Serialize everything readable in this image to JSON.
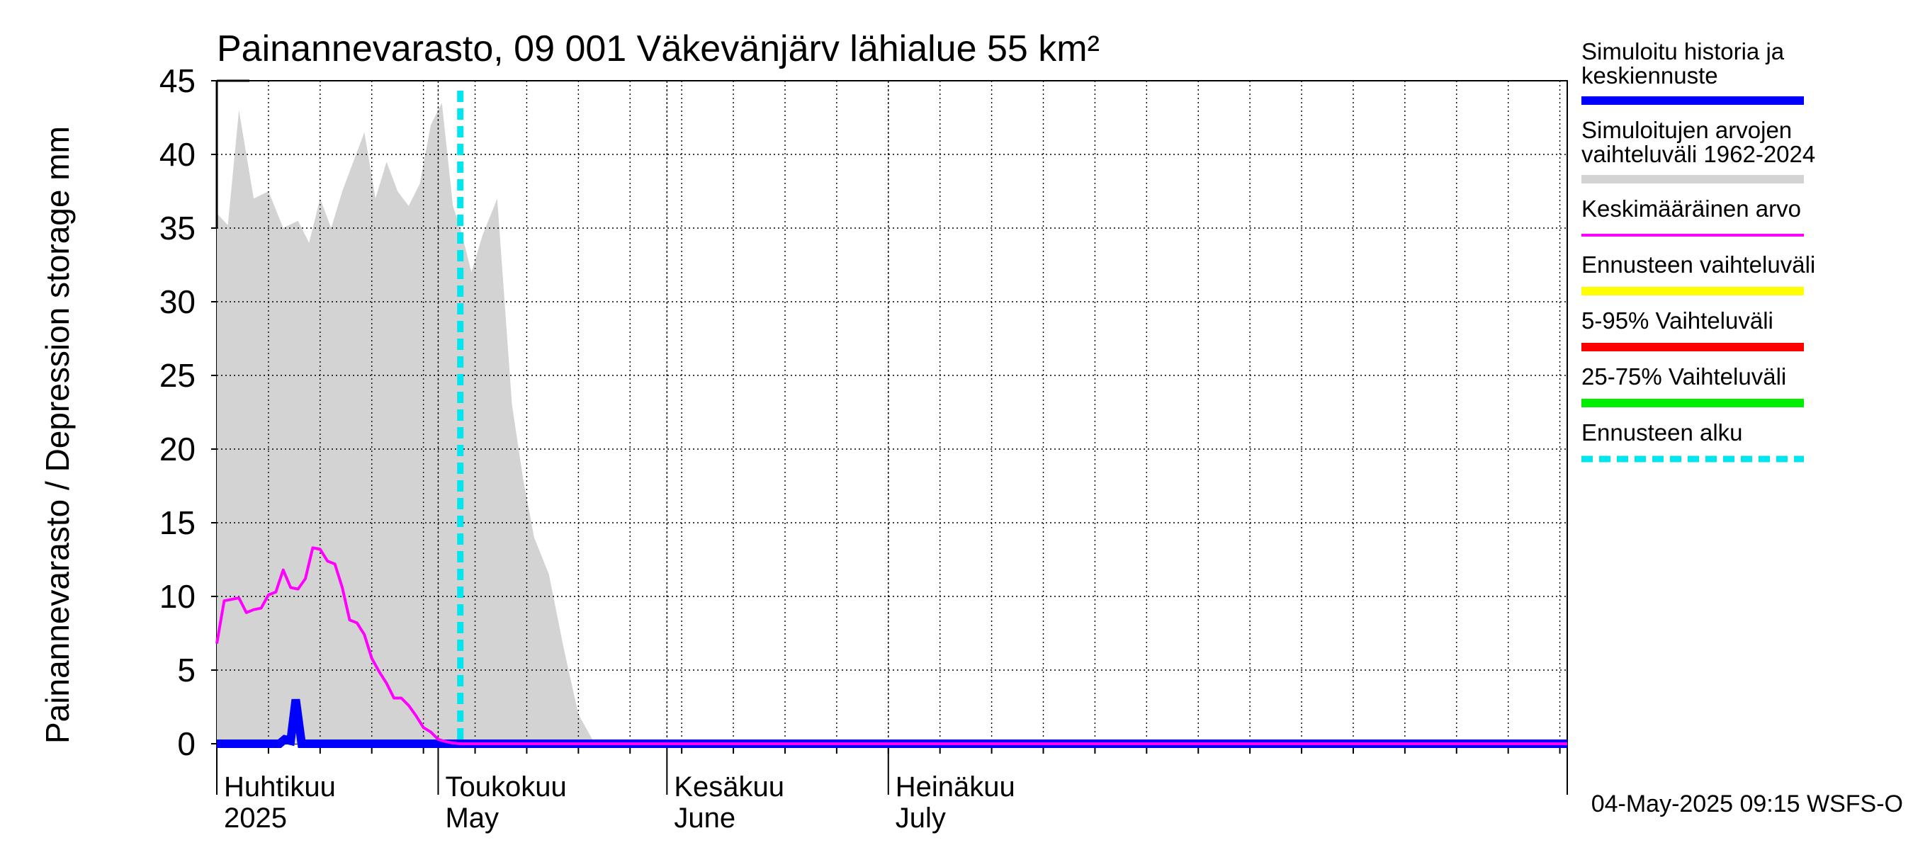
{
  "chart_data": {
    "type": "area",
    "title": "Painannevarasto, 09 001 Väkevänjärv lähialue 55 km²",
    "ylabel": "Painannevarasto / Depression storage    mm",
    "ylim": [
      0,
      45
    ],
    "yticks": [
      0,
      5,
      10,
      15,
      20,
      25,
      30,
      35,
      40,
      45
    ],
    "x_start_day": 0,
    "x_end_day": 183,
    "month_labels": [
      {
        "day": 0,
        "line1": "Huhtikuu",
        "line2": "2025"
      },
      {
        "day": 30,
        "line1": "Toukokuu",
        "line2": "May"
      },
      {
        "day": 61,
        "line1": "Kesäkuu",
        "line2": "June"
      },
      {
        "day": 91,
        "line1": "Heinäkuu",
        "line2": "July"
      }
    ],
    "forecast_start_day": 33,
    "series": [
      {
        "name": "Simuloitujen arvojen vaihteluväli 1962-2024",
        "kind": "band",
        "color": "#d3d3d3",
        "x": [
          0,
          1.5,
          3,
          5,
          7,
          9,
          11,
          12.5,
          14,
          15.5,
          17,
          18.5,
          20,
          21.5,
          23,
          24.5,
          26,
          27.5,
          29,
          30.5,
          32,
          33,
          34.5,
          36,
          38,
          39,
          40,
          41.5,
          43,
          45,
          47,
          49,
          51,
          53,
          55,
          55.4
        ],
        "upper": [
          36,
          35.2,
          43,
          37,
          37.5,
          35,
          35.5,
          34,
          37,
          35,
          37.5,
          39.5,
          41.5,
          37,
          39.5,
          37.5,
          36.5,
          38,
          42,
          43.5,
          36.5,
          35,
          32,
          34.5,
          37,
          30,
          23,
          18,
          14,
          11.5,
          6.5,
          2,
          0.2,
          0,
          0,
          0
        ],
        "lower": [
          0
        ]
      },
      {
        "name": "Keskimääräinen arvo",
        "kind": "line",
        "color": "#ff00ff",
        "x": [
          0,
          1,
          2,
          3,
          4,
          5,
          6,
          7,
          8,
          9,
          10,
          11,
          12,
          13,
          14,
          15,
          16,
          17,
          18,
          19,
          20,
          21,
          22,
          23,
          24,
          25,
          26,
          27,
          28,
          29,
          30,
          31,
          32,
          33,
          34,
          35,
          36,
          40,
          50,
          60,
          90,
          120,
          150,
          183
        ],
        "values": [
          6.8,
          9.7,
          9.8,
          9.9,
          8.9,
          9.1,
          9.2,
          10.1,
          10.3,
          11.8,
          10.6,
          10.5,
          11.2,
          13.3,
          13.2,
          12.4,
          12.2,
          10.6,
          8.4,
          8.2,
          7.4,
          5.8,
          4.9,
          4.1,
          3.1,
          3.1,
          2.6,
          1.9,
          1.1,
          0.8,
          0.3,
          0.15,
          0.05,
          0,
          0,
          0,
          0,
          0,
          0,
          0,
          0,
          0,
          0,
          0
        ]
      },
      {
        "name": "Simuloitu historia ja keskiennuste",
        "kind": "line",
        "color": "#0000ff",
        "x": [
          0,
          8.5,
          9.2,
          10,
          10.7,
          11.5,
          12.5,
          13.5,
          30,
          33,
          60,
          90,
          120,
          150,
          183
        ],
        "values": [
          0,
          0,
          0.3,
          0.2,
          3,
          0,
          0,
          0,
          0,
          0,
          0,
          0,
          0,
          0,
          0
        ]
      }
    ],
    "legend": {
      "placement": "right",
      "items": [
        {
          "label1": "Simuloitu historia ja",
          "label2": "keskiennuste",
          "color": "#0000ff",
          "style": "thick"
        },
        {
          "label1": "Simuloitujen arvojen",
          "label2": "vaihteluväli 1962-2024",
          "color": "#d3d3d3",
          "style": "thick"
        },
        {
          "label1": "Keskimääräinen arvo",
          "label2": "",
          "color": "#ff00ff",
          "style": "thin"
        },
        {
          "label1": "Ennusteen vaihteluväli",
          "label2": "",
          "color": "#ffff00",
          "style": "thick"
        },
        {
          "label1": "5-95% Vaihteluväli",
          "label2": "",
          "color": "#ff0000",
          "style": "thick"
        },
        {
          "label1": "25-75% Vaihteluväli",
          "label2": "",
          "color": "#00ee00",
          "style": "thick"
        },
        {
          "label1": "Ennusteen alku",
          "label2": "",
          "color": "#00e5ee",
          "style": "dashed"
        }
      ]
    },
    "footer": "04-May-2025 09:15 WSFS-O"
  }
}
